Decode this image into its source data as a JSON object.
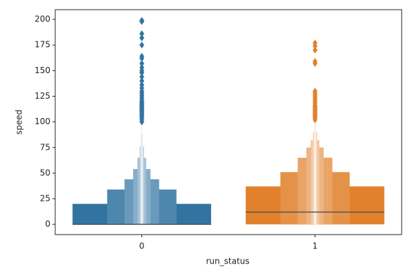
{
  "chart_data": {
    "type": "boxen",
    "x_label": "run_status",
    "y_label": "speed",
    "categories": [
      "0",
      "1"
    ],
    "colors": [
      "#3274a1",
      "#e1812c"
    ],
    "medians": [
      0,
      12
    ],
    "letter_values": [
      [
        [
          0,
          20
        ],
        [
          0,
          34
        ],
        [
          0,
          44
        ],
        [
          0,
          54
        ],
        [
          0,
          65
        ],
        [
          0,
          76
        ],
        [
          0,
          88
        ],
        [
          0,
          100
        ]
      ],
      [
        [
          0,
          37
        ],
        [
          0,
          51
        ],
        [
          0,
          65
        ],
        [
          0,
          75
        ],
        [
          0,
          82
        ],
        [
          0,
          90
        ],
        [
          0,
          98
        ],
        [
          0,
          104
        ]
      ]
    ],
    "outliers": [
      [
        100,
        102,
        104,
        105,
        106,
        107,
        108,
        109,
        110,
        111,
        112,
        113,
        114,
        115,
        116,
        117,
        118,
        119,
        120,
        122,
        124,
        126,
        128,
        130,
        133,
        136,
        140,
        144,
        148,
        150,
        153,
        157,
        162,
        164,
        175,
        182,
        186,
        198,
        199
      ],
      [
        102,
        104,
        105,
        106,
        107,
        108,
        109,
        110,
        111,
        112,
        113,
        114,
        115,
        116,
        118,
        120,
        122,
        124,
        126,
        128,
        130,
        157,
        159,
        170,
        174,
        177
      ]
    ],
    "ylim": [
      -10,
      209.5
    ],
    "yticks": [
      0,
      25,
      50,
      75,
      100,
      125,
      150,
      175,
      200
    ]
  }
}
